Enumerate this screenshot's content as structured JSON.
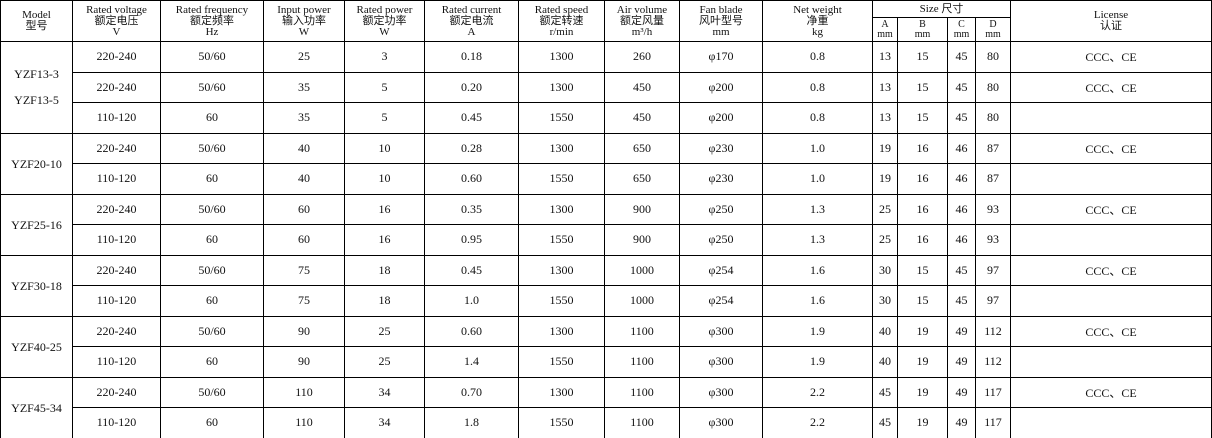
{
  "header": {
    "columns": [
      {
        "lines": [
          "Model",
          "型号"
        ]
      },
      {
        "lines": [
          "Rated voltage",
          "额定电压",
          "V"
        ]
      },
      {
        "lines": [
          "Rated frequency",
          "额定频率",
          "Hz"
        ]
      },
      {
        "lines": [
          "Input power",
          "输入功率",
          "W"
        ]
      },
      {
        "lines": [
          "Rated power",
          "额定功率",
          "W"
        ]
      },
      {
        "lines": [
          "Rated current",
          "额定电流",
          "A"
        ]
      },
      {
        "lines": [
          "Rated speed",
          "额定转速",
          "r/min"
        ]
      },
      {
        "lines": [
          "Air volume",
          "额定风量",
          "m³/h"
        ]
      },
      {
        "lines": [
          "Fan blade",
          "风叶型号",
          "mm"
        ]
      },
      {
        "lines": [
          "Net weight",
          "净重",
          "kg"
        ]
      }
    ],
    "size": {
      "title": "Size 尺寸",
      "columns": [
        [
          "A",
          "mm"
        ],
        [
          "B",
          "mm"
        ],
        [
          "C",
          "mm"
        ],
        [
          "D",
          "mm"
        ]
      ]
    },
    "license": {
      "lines": [
        "License",
        "认证"
      ]
    }
  },
  "groups": [
    {
      "model": [
        "YZF13-3",
        "YZF13-5"
      ],
      "rows": [
        {
          "cells": [
            "220-240",
            "50/60",
            "25",
            "3",
            "0.18",
            "1300",
            "260",
            "φ170",
            "0.8",
            "13",
            "15",
            "45",
            "80"
          ],
          "license": "CCC、CE"
        },
        {
          "cells": [
            "220-240",
            "50/60",
            "35",
            "5",
            "0.20",
            "1300",
            "450",
            "φ200",
            "0.8",
            "13",
            "15",
            "45",
            "80"
          ],
          "license": "CCC、CE"
        },
        {
          "cells": [
            "110-120",
            "60",
            "35",
            "5",
            "0.45",
            "1550",
            "450",
            "φ200",
            "0.8",
            "13",
            "15",
            "45",
            "80"
          ],
          "license": null
        }
      ]
    },
    {
      "model": [
        "YZF20-10"
      ],
      "rows": [
        {
          "cells": [
            "220-240",
            "50/60",
            "40",
            "10",
            "0.28",
            "1300",
            "650",
            "φ230",
            "1.0",
            "19",
            "16",
            "46",
            "87"
          ],
          "license": "CCC、CE"
        },
        {
          "cells": [
            "110-120",
            "60",
            "40",
            "10",
            "0.60",
            "1550",
            "650",
            "φ230",
            "1.0",
            "19",
            "16",
            "46",
            "87"
          ],
          "license": null
        }
      ]
    },
    {
      "model": [
        "YZF25-16"
      ],
      "rows": [
        {
          "cells": [
            "220-240",
            "50/60",
            "60",
            "16",
            "0.35",
            "1300",
            "900",
            "φ250",
            "1.3",
            "25",
            "16",
            "46",
            "93"
          ],
          "license": "CCC、CE"
        },
        {
          "cells": [
            "110-120",
            "60",
            "60",
            "16",
            "0.95",
            "1550",
            "900",
            "φ250",
            "1.3",
            "25",
            "16",
            "46",
            "93"
          ],
          "license": null
        }
      ]
    },
    {
      "model": [
        "YZF30-18"
      ],
      "rows": [
        {
          "cells": [
            "220-240",
            "50/60",
            "75",
            "18",
            "0.45",
            "1300",
            "1000",
            "φ254",
            "1.6",
            "30",
            "15",
            "45",
            "97"
          ],
          "license": "CCC、CE"
        },
        {
          "cells": [
            "110-120",
            "60",
            "75",
            "18",
            "1.0",
            "1550",
            "1000",
            "φ254",
            "1.6",
            "30",
            "15",
            "45",
            "97"
          ],
          "license": null
        }
      ]
    },
    {
      "model": [
        "YZF40-25"
      ],
      "rows": [
        {
          "cells": [
            "220-240",
            "50/60",
            "90",
            "25",
            "0.60",
            "1300",
            "1100",
            "φ300",
            "1.9",
            "40",
            "19",
            "49",
            "112"
          ],
          "license": "CCC、CE"
        },
        {
          "cells": [
            "110-120",
            "60",
            "90",
            "25",
            "1.4",
            "1550",
            "1100",
            "φ300",
            "1.9",
            "40",
            "19",
            "49",
            "112"
          ],
          "license": null
        }
      ]
    },
    {
      "model": [
        "YZF45-34"
      ],
      "rows": [
        {
          "cells": [
            "220-240",
            "50/60",
            "110",
            "34",
            "0.70",
            "1300",
            "1100",
            "φ300",
            "2.2",
            "45",
            "19",
            "49",
            "117"
          ],
          "license": "CCC、CE"
        },
        {
          "cells": [
            "110-120",
            "60",
            "110",
            "34",
            "1.8",
            "1550",
            "1100",
            "φ300",
            "2.2",
            "45",
            "19",
            "49",
            "117"
          ],
          "license": null
        }
      ]
    }
  ]
}
